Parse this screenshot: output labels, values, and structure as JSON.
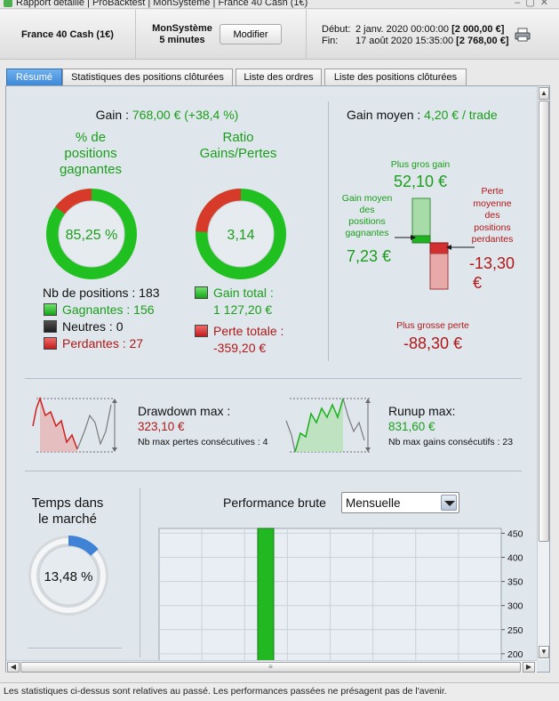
{
  "window": {
    "title": "Rapport détaillé | ProBacktest | MonSystème | France 40 Cash (1€)"
  },
  "header": {
    "instrument": "France 40 Cash (1€)",
    "system_name": "MonSystème",
    "timeframe": "5 minutes",
    "modify_label": "Modifier",
    "start_label": "Début:",
    "start_date": "2 janv. 2020 00:00:00",
    "start_value": "[2 000,00 €]",
    "end_label": "Fin:",
    "end_date": "17 août 2020 15:35:00",
    "end_value": "[2 768,00 €]"
  },
  "tabs": [
    {
      "label": "Résumé",
      "active": true
    },
    {
      "label": "Statistiques des positions clôturées",
      "active": false
    },
    {
      "label": "Liste des ordres",
      "active": false
    },
    {
      "label": "Liste des positions clôturées",
      "active": false
    }
  ],
  "summary": {
    "gain_label": "Gain :",
    "gain_value": "768,00 € (+38,4 %)",
    "win_pct_title_1": "% de",
    "win_pct_title_2": "positions",
    "win_pct_title_3": "gagnantes",
    "win_pct_value": "85,25 %",
    "win_pct_fraction": 0.8525,
    "ratio_title_1": "Ratio",
    "ratio_title_2": "Gains/Pertes",
    "ratio_value": "3,14",
    "ratio_green_fraction": 0.7584,
    "positions_label": "Nb de positions : 183",
    "winners_label": "Gagnantes : 156",
    "neutral_label": "Neutres : 0",
    "losers_label": "Perdantes : 27",
    "total_gain_label": "Gain total :",
    "total_gain_value": "1 127,20 €",
    "total_loss_label": "Perte totale :",
    "total_loss_value": "-359,20 €"
  },
  "avg_gain": {
    "label": "Gain moyen :",
    "value": "4,20 € / trade",
    "biggest_gain_label": "Plus gros gain",
    "biggest_gain_value": "52,10 €",
    "avg_win_label_1": "Gain moyen",
    "avg_win_label_2": "des",
    "avg_win_label_3": "positions",
    "avg_win_label_4": "gagnantes",
    "avg_win_value": "7,23 €",
    "avg_loss_label_1": "Perte",
    "avg_loss_label_2": "moyenne",
    "avg_loss_label_3": "des",
    "avg_loss_label_4": "positions",
    "avg_loss_label_5": "perdantes",
    "avg_loss_value_1": "-13,30",
    "avg_loss_value_2": "€",
    "biggest_loss_label": "Plus grosse perte",
    "biggest_loss_value": "-88,30 €"
  },
  "drawdown": {
    "label": "Drawdown max :",
    "value": "323,10 €",
    "sub": "Nb max pertes consécutives : 4"
  },
  "runup": {
    "label": "Runup max:",
    "value": "831,60 €",
    "sub": "Nb max gains consécutifs : 23"
  },
  "market_time": {
    "title_1": "Temps dans",
    "title_2": "le marché",
    "value": "13,48 %",
    "fraction": 0.1348
  },
  "performance": {
    "label": "Performance brute",
    "period": "Mensuelle"
  },
  "chart_data": {
    "type": "bar",
    "title": "",
    "xlabel": "",
    "ylabel": "",
    "ylim": [
      185,
      460
    ],
    "yticks": [
      "450",
      "400",
      "350",
      "300",
      "250",
      "200"
    ],
    "series": [
      {
        "values": [
          460
        ]
      }
    ],
    "grid": true
  },
  "status": {
    "text": "Les statistiques ci-dessus sont relatives au passé. Les performances passées ne présagent pas de l'avenir."
  },
  "colors": {
    "green": "#1b9e1b",
    "red": "#b01818",
    "accent_tab": "#3b86d6"
  }
}
